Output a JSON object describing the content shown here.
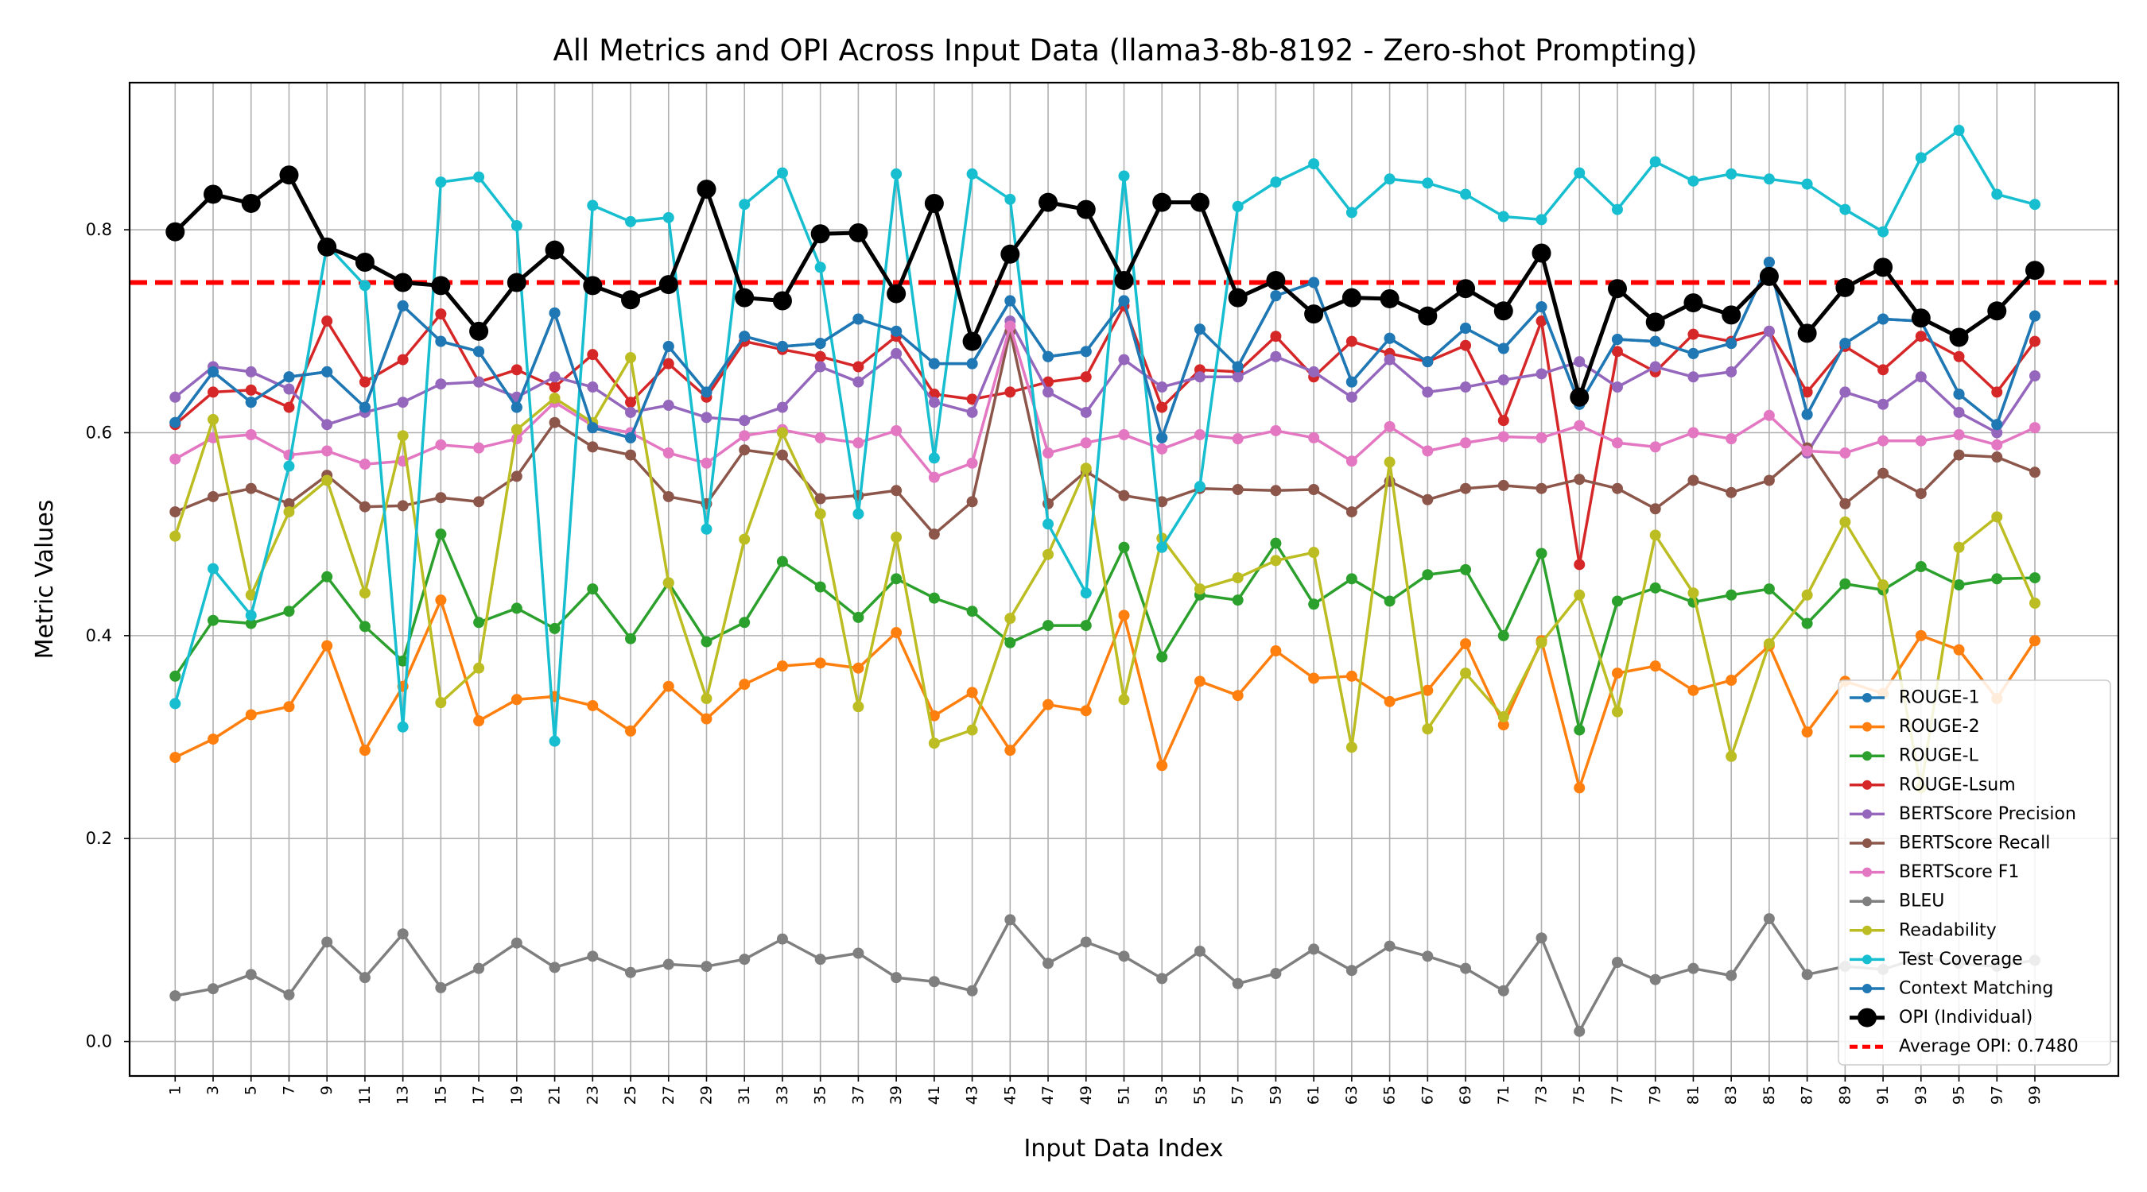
{
  "chart_data": {
    "type": "line",
    "title": "All Metrics and OPI Across Input Data (llama3-8b-8192 - Zero-shot Prompting)",
    "xlabel": "Input Data Index",
    "ylabel": "Metric Values",
    "x": [
      1,
      3,
      5,
      7,
      9,
      11,
      13,
      15,
      17,
      19,
      21,
      23,
      25,
      27,
      29,
      31,
      33,
      35,
      37,
      39,
      41,
      43,
      45,
      47,
      49,
      51,
      53,
      55,
      57,
      59,
      61,
      63,
      65,
      67,
      69,
      71,
      73,
      75,
      77,
      79,
      81,
      83,
      85,
      87,
      89,
      91,
      93,
      95,
      97,
      99
    ],
    "xticks": [
      "1",
      "3",
      "5",
      "7",
      "9",
      "11",
      "13",
      "15",
      "17",
      "19",
      "21",
      "23",
      "25",
      "27",
      "29",
      "31",
      "33",
      "35",
      "37",
      "39",
      "41",
      "43",
      "45",
      "47",
      "49",
      "51",
      "53",
      "55",
      "57",
      "59",
      "61",
      "63",
      "65",
      "67",
      "69",
      "71",
      "73",
      "75",
      "77",
      "79",
      "81",
      "83",
      "85",
      "87",
      "89",
      "91",
      "93",
      "95",
      "97",
      "99"
    ],
    "yticks": [
      "0.0",
      "0.2",
      "0.4",
      "0.6",
      "0.8"
    ],
    "xlim": [
      -1.4,
      103.4
    ],
    "ylim": [
      -0.034,
      0.945
    ],
    "grid": true,
    "legend_position": "lower-right",
    "average_opi": {
      "value": 0.748,
      "label": "Average OPI: 0.7480",
      "color": "#ff0000"
    },
    "series": [
      {
        "name": "ROUGE-1",
        "color": "#1f77b4",
        "values": [
          0.61,
          0.66,
          0.63,
          0.655,
          0.66,
          0.625,
          0.725,
          0.69,
          0.68,
          0.625,
          0.718,
          0.605,
          0.595,
          0.685,
          0.64,
          0.695,
          0.685,
          0.688,
          0.712,
          0.7,
          0.668,
          0.668,
          0.73,
          0.675,
          0.68,
          0.73,
          0.595,
          0.702,
          0.665,
          0.735,
          0.748,
          0.65,
          0.693,
          0.67,
          0.703,
          0.683,
          0.724,
          0.628,
          0.692,
          0.69,
          0.678,
          0.688,
          0.768,
          0.618,
          0.688,
          0.712,
          0.71,
          0.638,
          0.608,
          0.715
        ]
      },
      {
        "name": "ROUGE-2",
        "color": "#ff7f0e",
        "values": [
          0.28,
          0.298,
          0.322,
          0.33,
          0.39,
          0.287,
          0.35,
          0.435,
          0.316,
          0.337,
          0.34,
          0.331,
          0.306,
          0.35,
          0.318,
          0.352,
          0.37,
          0.373,
          0.368,
          0.403,
          0.321,
          0.344,
          0.287,
          0.332,
          0.326,
          0.42,
          0.272,
          0.355,
          0.341,
          0.385,
          0.358,
          0.36,
          0.335,
          0.346,
          0.392,
          0.312,
          0.395,
          0.25,
          0.363,
          0.37,
          0.346,
          0.356,
          0.39,
          0.305,
          0.355,
          0.343,
          0.4,
          0.386,
          0.338,
          0.395
        ]
      },
      {
        "name": "ROUGE-L",
        "color": "#2ca02c",
        "values": [
          0.36,
          0.415,
          0.412,
          0.424,
          0.458,
          0.409,
          0.375,
          0.5,
          0.413,
          0.427,
          0.407,
          0.446,
          0.397,
          0.452,
          0.394,
          0.413,
          0.473,
          0.448,
          0.418,
          0.456,
          0.437,
          0.424,
          0.393,
          0.41,
          0.41,
          0.487,
          0.379,
          0.44,
          0.435,
          0.491,
          0.431,
          0.456,
          0.434,
          0.46,
          0.465,
          0.4,
          0.481,
          0.307,
          0.434,
          0.447,
          0.433,
          0.44,
          0.446,
          0.412,
          0.451,
          0.445,
          0.468,
          0.45,
          0.456,
          0.457
        ]
      },
      {
        "name": "ROUGE-Lsum",
        "color": "#d62728",
        "values": [
          0.608,
          0.64,
          0.642,
          0.625,
          0.71,
          0.65,
          0.672,
          0.717,
          0.65,
          0.662,
          0.645,
          0.677,
          0.63,
          0.668,
          0.635,
          0.69,
          0.682,
          0.675,
          0.665,
          0.695,
          0.638,
          0.633,
          0.64,
          0.65,
          0.655,
          0.725,
          0.625,
          0.662,
          0.66,
          0.695,
          0.655,
          0.69,
          0.678,
          0.67,
          0.686,
          0.612,
          0.71,
          0.47,
          0.68,
          0.66,
          0.697,
          0.69,
          0.7,
          0.64,
          0.685,
          0.662,
          0.695,
          0.675,
          0.64,
          0.69
        ]
      },
      {
        "name": "BERTScore Precision",
        "color": "#9467bd",
        "values": [
          0.635,
          0.665,
          0.66,
          0.643,
          0.608,
          0.62,
          0.63,
          0.648,
          0.65,
          0.635,
          0.655,
          0.645,
          0.62,
          0.627,
          0.615,
          0.612,
          0.625,
          0.665,
          0.65,
          0.678,
          0.63,
          0.62,
          0.71,
          0.64,
          0.62,
          0.672,
          0.645,
          0.655,
          0.655,
          0.675,
          0.66,
          0.635,
          0.672,
          0.64,
          0.645,
          0.652,
          0.658,
          0.67,
          0.645,
          0.665,
          0.655,
          0.66,
          0.7,
          0.58,
          0.64,
          0.628,
          0.655,
          0.62,
          0.6,
          0.656
        ]
      },
      {
        "name": "BERTScore Recall",
        "color": "#8c564b",
        "values": [
          0.522,
          0.537,
          0.545,
          0.53,
          0.558,
          0.527,
          0.528,
          0.536,
          0.532,
          0.557,
          0.61,
          0.586,
          0.578,
          0.537,
          0.53,
          0.583,
          0.578,
          0.535,
          0.538,
          0.543,
          0.5,
          0.532,
          0.7,
          0.53,
          0.562,
          0.538,
          0.532,
          0.545,
          0.544,
          0.543,
          0.544,
          0.522,
          0.552,
          0.534,
          0.545,
          0.548,
          0.545,
          0.554,
          0.545,
          0.525,
          0.553,
          0.541,
          0.553,
          0.585,
          0.53,
          0.56,
          0.54,
          0.578,
          0.576,
          0.561
        ]
      },
      {
        "name": "BERTScore F1",
        "color": "#e377c2",
        "values": [
          0.574,
          0.595,
          0.598,
          0.578,
          0.582,
          0.569,
          0.572,
          0.588,
          0.585,
          0.594,
          0.63,
          0.607,
          0.6,
          0.58,
          0.57,
          0.597,
          0.603,
          0.595,
          0.59,
          0.602,
          0.556,
          0.57,
          0.705,
          0.58,
          0.59,
          0.598,
          0.584,
          0.598,
          0.594,
          0.602,
          0.595,
          0.572,
          0.606,
          0.582,
          0.59,
          0.596,
          0.595,
          0.607,
          0.59,
          0.586,
          0.6,
          0.594,
          0.617,
          0.582,
          0.58,
          0.592,
          0.592,
          0.598,
          0.588,
          0.605
        ]
      },
      {
        "name": "BLEU",
        "color": "#7f7f7f",
        "values": [
          0.045,
          0.052,
          0.066,
          0.046,
          0.098,
          0.063,
          0.106,
          0.053,
          0.072,
          0.097,
          0.073,
          0.084,
          0.068,
          0.076,
          0.074,
          0.081,
          0.101,
          0.081,
          0.087,
          0.063,
          0.059,
          0.05,
          0.12,
          0.077,
          0.098,
          0.084,
          0.062,
          0.089,
          0.057,
          0.067,
          0.091,
          0.07,
          0.094,
          0.084,
          0.072,
          0.05,
          0.102,
          0.01,
          0.078,
          0.061,
          0.072,
          0.065,
          0.121,
          0.066,
          0.074,
          0.071,
          0.083,
          0.077,
          0.074,
          0.08
        ]
      },
      {
        "name": "Readability",
        "color": "#bcbd22",
        "values": [
          0.498,
          0.613,
          0.44,
          0.522,
          0.553,
          0.442,
          0.597,
          0.334,
          0.368,
          0.603,
          0.634,
          0.61,
          0.674,
          0.452,
          0.338,
          0.495,
          0.6,
          0.52,
          0.33,
          0.497,
          0.294,
          0.307,
          0.417,
          0.48,
          0.565,
          0.337,
          0.496,
          0.446,
          0.457,
          0.474,
          0.482,
          0.29,
          0.571,
          0.308,
          0.363,
          0.32,
          0.393,
          0.44,
          0.325,
          0.499,
          0.442,
          0.281,
          0.392,
          0.44,
          0.512,
          0.45,
          0.25,
          0.487,
          0.517,
          0.432
        ]
      },
      {
        "name": "Test Coverage",
        "color": "#17becf",
        "values": [
          0.333,
          0.466,
          0.42,
          0.567,
          0.785,
          0.745,
          0.31,
          0.847,
          0.852,
          0.804,
          0.296,
          0.824,
          0.808,
          0.812,
          0.505,
          0.825,
          0.856,
          0.763,
          0.52,
          0.855,
          0.575,
          0.855,
          0.83,
          0.51,
          0.442,
          0.853,
          0.487,
          0.547,
          0.823,
          0.847,
          0.865,
          0.817,
          0.85,
          0.846,
          0.835,
          0.813,
          0.81,
          0.856,
          0.82,
          0.867,
          0.848,
          0.855,
          0.85,
          0.845,
          0.82,
          0.798,
          0.871,
          0.898,
          0.835,
          0.825
        ]
      },
      {
        "name": "Context Matching",
        "color": "#1f77b4",
        "values": [
          0.61,
          0.66,
          0.63,
          0.655,
          0.66,
          0.625,
          0.725,
          0.69,
          0.68,
          0.625,
          0.718,
          0.605,
          0.595,
          0.685,
          0.64,
          0.695,
          0.685,
          0.688,
          0.712,
          0.7,
          0.668,
          0.668,
          0.73,
          0.675,
          0.68,
          0.73,
          0.595,
          0.702,
          0.665,
          0.735,
          0.748,
          0.65,
          0.693,
          0.67,
          0.703,
          0.683,
          0.724,
          0.628,
          0.692,
          0.69,
          0.678,
          0.688,
          0.768,
          0.618,
          0.688,
          0.712,
          0.71,
          0.638,
          0.608,
          0.715
        ]
      },
      {
        "name": "OPI (Individual)",
        "color": "#000000",
        "values": [
          0.798,
          0.835,
          0.826,
          0.854,
          0.783,
          0.768,
          0.748,
          0.745,
          0.7,
          0.748,
          0.78,
          0.745,
          0.731,
          0.746,
          0.84,
          0.733,
          0.73,
          0.796,
          0.797,
          0.737,
          0.826,
          0.69,
          0.776,
          0.827,
          0.82,
          0.75,
          0.827,
          0.827,
          0.733,
          0.75,
          0.717,
          0.733,
          0.732,
          0.715,
          0.742,
          0.72,
          0.777,
          0.635,
          0.742,
          0.709,
          0.728,
          0.716,
          0.754,
          0.698,
          0.743,
          0.763,
          0.713,
          0.694,
          0.72,
          0.76
        ]
      }
    ]
  }
}
